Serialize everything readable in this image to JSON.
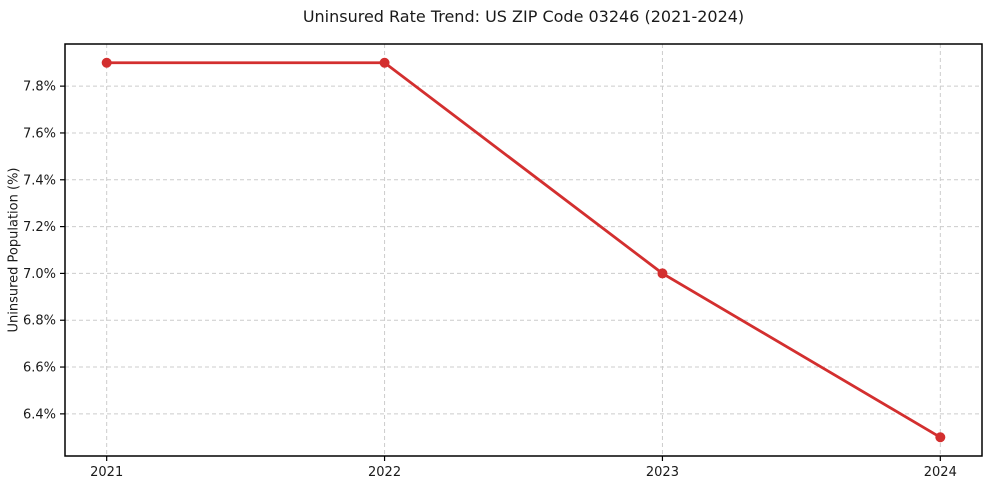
{
  "figure": {
    "title": "Uninsured Rate Trend: US ZIP Code 03246 (2021-2024)"
  },
  "chart_data": {
    "type": "line",
    "title": "Uninsured Rate Trend: US ZIP Code 03246 (2021-2024)",
    "xlabel": "",
    "ylabel": "Uninsured Population (%)",
    "x": [
      2021,
      2022,
      2023,
      2024
    ],
    "x_tick_labels": [
      "2021",
      "2022",
      "2023",
      "2024"
    ],
    "series": [
      {
        "name": "Uninsured Population (%)",
        "values": [
          7.9,
          7.9,
          7.0,
          6.3
        ]
      }
    ],
    "y_tick_values": [
      6.4,
      6.6,
      6.8,
      7.0,
      7.2,
      7.4,
      7.6,
      7.8
    ],
    "y_tick_labels": [
      "6.4%",
      "6.6%",
      "6.8%",
      "7.0%",
      "7.2%",
      "7.4%",
      "7.6%",
      "7.8%"
    ],
    "xlim": [
      2020.85,
      2024.15
    ],
    "ylim": [
      6.22,
      7.98
    ],
    "grid": true,
    "grid_style": "dashed",
    "legend_position": "none",
    "styles": {
      "line_color": "#d32f2f",
      "marker_color": "#d32f2f",
      "grid_color": "#cccccc",
      "axis_color": "#000000",
      "text_color": "#1a1a1a",
      "background_color": "#ffffff"
    }
  }
}
